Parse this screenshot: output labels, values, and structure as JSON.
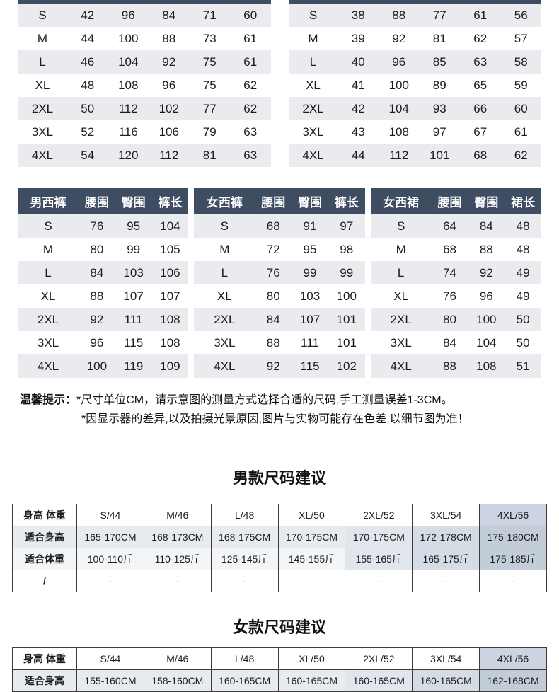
{
  "colors": {
    "table_header_bg": "#3f4d63",
    "row_stripe": "#e9ebef",
    "highlight_column": "#c3cdda"
  },
  "top_tables": [
    {
      "rows": [
        [
          "S",
          "42",
          "96",
          "84",
          "71",
          "60"
        ],
        [
          "M",
          "44",
          "100",
          "88",
          "73",
          "61"
        ],
        [
          "L",
          "46",
          "104",
          "92",
          "75",
          "61"
        ],
        [
          "XL",
          "48",
          "108",
          "96",
          "75",
          "62"
        ],
        [
          "2XL",
          "50",
          "112",
          "102",
          "77",
          "62"
        ],
        [
          "3XL",
          "52",
          "116",
          "106",
          "79",
          "63"
        ],
        [
          "4XL",
          "54",
          "120",
          "112",
          "81",
          "63"
        ]
      ]
    },
    {
      "rows": [
        [
          "S",
          "38",
          "88",
          "77",
          "61",
          "56"
        ],
        [
          "M",
          "39",
          "92",
          "81",
          "62",
          "57"
        ],
        [
          "L",
          "40",
          "96",
          "85",
          "63",
          "58"
        ],
        [
          "XL",
          "41",
          "100",
          "89",
          "65",
          "59"
        ],
        [
          "2XL",
          "42",
          "104",
          "93",
          "66",
          "60"
        ],
        [
          "3XL",
          "43",
          "108",
          "97",
          "67",
          "61"
        ],
        [
          "4XL",
          "44",
          "112",
          "101",
          "68",
          "62"
        ]
      ]
    }
  ],
  "measure_tables": [
    {
      "headers": [
        "男西裤",
        "腰围",
        "臀围",
        "裤长"
      ],
      "rows": [
        [
          "S",
          "76",
          "95",
          "104"
        ],
        [
          "M",
          "80",
          "99",
          "105"
        ],
        [
          "L",
          "84",
          "103",
          "106"
        ],
        [
          "XL",
          "88",
          "107",
          "107"
        ],
        [
          "2XL",
          "92",
          "111",
          "108"
        ],
        [
          "3XL",
          "96",
          "115",
          "108"
        ],
        [
          "4XL",
          "100",
          "119",
          "109"
        ]
      ]
    },
    {
      "headers": [
        "女西裤",
        "腰围",
        "臀围",
        "裤长"
      ],
      "rows": [
        [
          "S",
          "68",
          "91",
          "97"
        ],
        [
          "M",
          "72",
          "95",
          "98"
        ],
        [
          "L",
          "76",
          "99",
          "99"
        ],
        [
          "XL",
          "80",
          "103",
          "100"
        ],
        [
          "2XL",
          "84",
          "107",
          "101"
        ],
        [
          "3XL",
          "88",
          "111",
          "101"
        ],
        [
          "4XL",
          "92",
          "115",
          "102"
        ]
      ]
    },
    {
      "headers": [
        "女西裙",
        "腰围",
        "臀围",
        "裙长"
      ],
      "rows": [
        [
          "S",
          "64",
          "84",
          "48"
        ],
        [
          "M",
          "68",
          "88",
          "48"
        ],
        [
          "L",
          "74",
          "92",
          "49"
        ],
        [
          "XL",
          "76",
          "96",
          "49"
        ],
        [
          "2XL",
          "80",
          "100",
          "50"
        ],
        [
          "3XL",
          "84",
          "104",
          "50"
        ],
        [
          "4XL",
          "88",
          "108",
          "51"
        ]
      ]
    }
  ],
  "notes": {
    "label": "温馨提示：",
    "line1": "*尺寸单位CM，请示意图的测量方式选择合适的尺码,手工测量误差1-3CM。",
    "line2": "*因显示器的差异,以及拍摄光景原因,图片与实物可能存在色差,以细节图为准！"
  },
  "men_suggestion": {
    "title": "男款尺码建议",
    "headers": [
      "身高 体重",
      "S/44",
      "M/46",
      "L/48",
      "XL/50",
      "2XL/52",
      "3XL/54",
      "4XL/56"
    ],
    "header_shaded_col": 7,
    "shade_from": 5,
    "shaded_rows": [
      0,
      1
    ],
    "rows": [
      [
        "适合身高",
        "165-170CM",
        "168-173CM",
        "168-175CM",
        "170-175CM",
        "170-175CM",
        "172-178CM",
        "175-180CM"
      ],
      [
        "适合体重",
        "100-110斤",
        "110-125斤",
        "125-145斤",
        "145-155斤",
        "155-165斤",
        "165-175斤",
        "175-185斤"
      ],
      [
        "/",
        "-",
        "-",
        "-",
        "-",
        "-",
        "-",
        "-"
      ]
    ]
  },
  "women_suggestion": {
    "title": "女款尺码建议",
    "headers": [
      "身高 体重",
      "S/44",
      "M/46",
      "L/48",
      "XL/50",
      "2XL/52",
      "3XL/54",
      "4XL/56"
    ],
    "header_shaded_col": 7,
    "shade_from": 5,
    "shaded_rows": [
      0
    ],
    "rows": [
      [
        "适合身高",
        "155-160CM",
        "158-160CM",
        "160-165CM",
        "160-165CM",
        "160-165CM",
        "160-165CM",
        "162-168CM"
      ]
    ]
  }
}
